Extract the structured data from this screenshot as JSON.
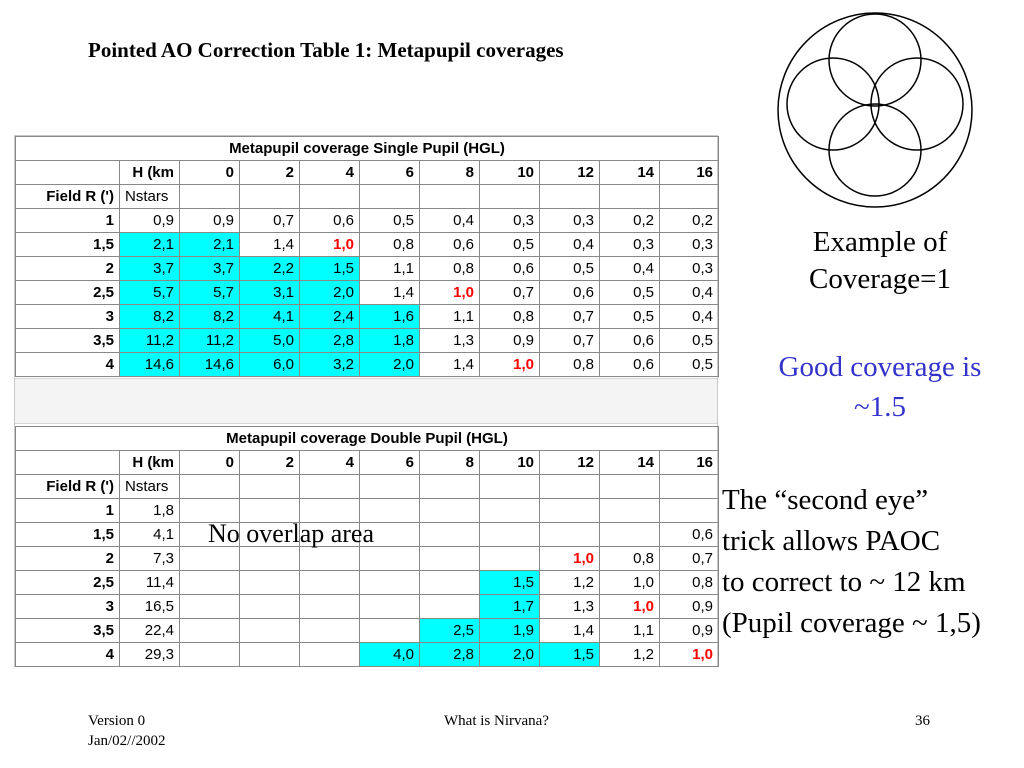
{
  "title": "Pointed AO Correction Table 1: Metapupil coverages",
  "table1": {
    "title": "Metapupil coverage Single Pupil (HGL)",
    "header_row": [
      "",
      "H (km",
      "0",
      "2",
      "4",
      "6",
      "8",
      "10",
      "12",
      "14",
      "16"
    ],
    "subheader_row": [
      "Field R (')",
      "Nstars",
      "",
      "",
      "",
      "",
      "",
      "",
      "",
      "",
      ""
    ],
    "rows": [
      {
        "cells": [
          "1",
          "0,9",
          "0,9",
          "0,7",
          "0,6",
          "0,5",
          "0,4",
          "0,3",
          "0,3",
          "0,2",
          "0,2"
        ],
        "cyan": [],
        "red": []
      },
      {
        "cells": [
          "1,5",
          "2,1",
          "2,1",
          "1,4",
          "1,0",
          "0,8",
          "0,6",
          "0,5",
          "0,4",
          "0,3",
          "0,3"
        ],
        "cyan": [
          1,
          2
        ],
        "red": [
          4
        ]
      },
      {
        "cells": [
          "2",
          "3,7",
          "3,7",
          "2,2",
          "1,5",
          "1,1",
          "0,8",
          "0,6",
          "0,5",
          "0,4",
          "0,3"
        ],
        "cyan": [
          1,
          2,
          3,
          4
        ],
        "red": []
      },
      {
        "cells": [
          "2,5",
          "5,7",
          "5,7",
          "3,1",
          "2,0",
          "1,4",
          "1,0",
          "0,7",
          "0,6",
          "0,5",
          "0,4"
        ],
        "cyan": [
          1,
          2,
          3,
          4
        ],
        "red": [
          6
        ]
      },
      {
        "cells": [
          "3",
          "8,2",
          "8,2",
          "4,1",
          "2,4",
          "1,6",
          "1,1",
          "0,8",
          "0,7",
          "0,5",
          "0,4"
        ],
        "cyan": [
          1,
          2,
          3,
          4,
          5
        ],
        "red": []
      },
      {
        "cells": [
          "3,5",
          "11,2",
          "11,2",
          "5,0",
          "2,8",
          "1,8",
          "1,3",
          "0,9",
          "0,7",
          "0,6",
          "0,5"
        ],
        "cyan": [
          1,
          2,
          3,
          4,
          5
        ],
        "red": []
      },
      {
        "cells": [
          "4",
          "14,6",
          "14,6",
          "6,0",
          "3,2",
          "2,0",
          "1,4",
          "1,0",
          "0,8",
          "0,6",
          "0,5"
        ],
        "cyan": [
          1,
          2,
          3,
          4,
          5
        ],
        "red": [
          7
        ]
      }
    ]
  },
  "table2": {
    "title": "Metapupil coverage Double Pupil (HGL)",
    "header_row": [
      "",
      "H (km",
      "0",
      "2",
      "4",
      "6",
      "8",
      "10",
      "12",
      "14",
      "16"
    ],
    "subheader_row": [
      "Field R (')",
      "Nstars",
      "",
      "",
      "",
      "",
      "",
      "",
      "",
      "",
      ""
    ],
    "rows": [
      {
        "cells": [
          "1",
          "1,8",
          "",
          "",
          "",
          "",
          "",
          "",
          "",
          "",
          ""
        ],
        "cyan": [],
        "red": []
      },
      {
        "cells": [
          "1,5",
          "4,1",
          "",
          "",
          "",
          "",
          "",
          "",
          "",
          "",
          "0,6"
        ],
        "cyan": [],
        "red": []
      },
      {
        "cells": [
          "2",
          "7,3",
          "",
          "",
          "",
          "",
          "",
          "",
          "1,0",
          "0,8",
          "0,7"
        ],
        "cyan": [],
        "red": [
          8
        ]
      },
      {
        "cells": [
          "2,5",
          "11,4",
          "",
          "",
          "",
          "",
          "",
          "1,5",
          "1,2",
          "1,0",
          "0,8"
        ],
        "cyan": [
          7
        ],
        "red": []
      },
      {
        "cells": [
          "3",
          "16,5",
          "",
          "",
          "",
          "",
          "",
          "1,7",
          "1,3",
          "1,0",
          "0,9"
        ],
        "cyan": [
          7
        ],
        "red": [
          9
        ]
      },
      {
        "cells": [
          "3,5",
          "22,4",
          "",
          "",
          "",
          "",
          "2,5",
          "1,9",
          "1,4",
          "1,1",
          "0,9"
        ],
        "cyan": [
          6,
          7
        ],
        "red": []
      },
      {
        "cells": [
          "4",
          "29,3",
          "",
          "",
          "",
          "4,0",
          "2,8",
          "2,0",
          "1,5",
          "1,2",
          "1,0"
        ],
        "cyan": [
          5,
          6,
          7,
          8
        ],
        "red": [
          10
        ]
      }
    ]
  },
  "overlap_note": "No overlap area",
  "captions": {
    "example_line1": "Example of",
    "example_line2": "Coverage=1",
    "good_line1": "Good coverage is",
    "good_line2": "~1.5",
    "second_eye_line1": "The “second eye”",
    "second_eye_line2": "trick allows PAOC",
    "second_eye_line3": "to correct to ~ 12 km",
    "second_eye_line4": "(Pupil coverage ~ 1,5)"
  },
  "colors": {
    "highlight": "#00ffff",
    "emphasis_value": "#ff0000",
    "good_coverage_text": "#3333cc"
  },
  "footer": {
    "version": "Version 0",
    "date": "Jan/02//2002",
    "center": "What is Nirvana?",
    "page_number": "36"
  }
}
